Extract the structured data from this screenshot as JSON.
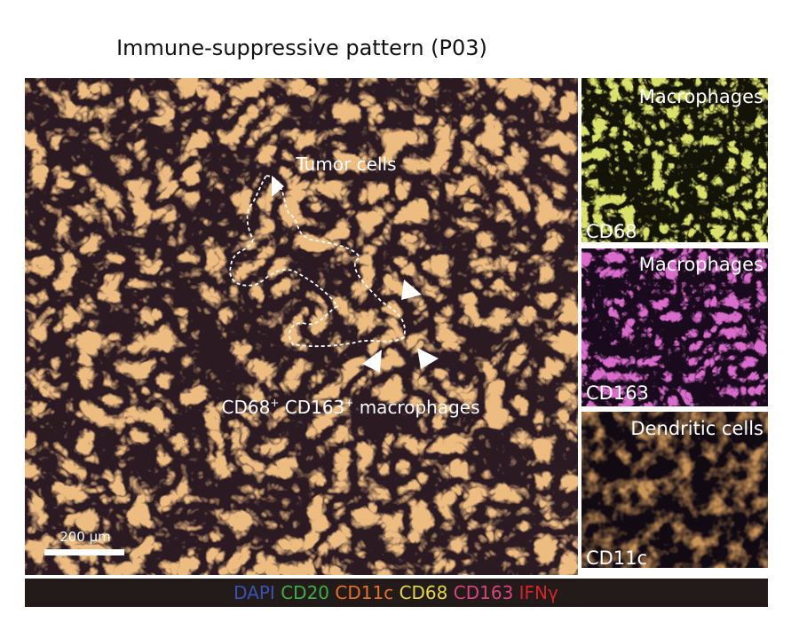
{
  "title": "Immune-suppressive pattern (P03)",
  "main_image": {
    "tumor_label": "Tumor cells",
    "macrophage_label": {
      "marker1": "CD68",
      "sup1": "+",
      "marker2": " CD163",
      "sup2": "+",
      "cell": " macrophages"
    },
    "scale_bar": "200 µm"
  },
  "side_panels": [
    {
      "title": "Macrophages",
      "marker": "CD68"
    },
    {
      "title": "Macrophages",
      "marker": "CD163"
    },
    {
      "title": "Dendritic cells",
      "marker": "CD11c"
    }
  ],
  "legend": [
    {
      "label": "DAPI",
      "color": "#3a52b0"
    },
    {
      "label": "CD20",
      "color": "#3fae45"
    },
    {
      "label": "CD11c",
      "color": "#e8702a"
    },
    {
      "label": "CD68",
      "color": "#e6d84a"
    },
    {
      "label": "CD163",
      "color": "#d6457e"
    },
    {
      "label": "IFNγ",
      "color": "#d42626"
    }
  ]
}
